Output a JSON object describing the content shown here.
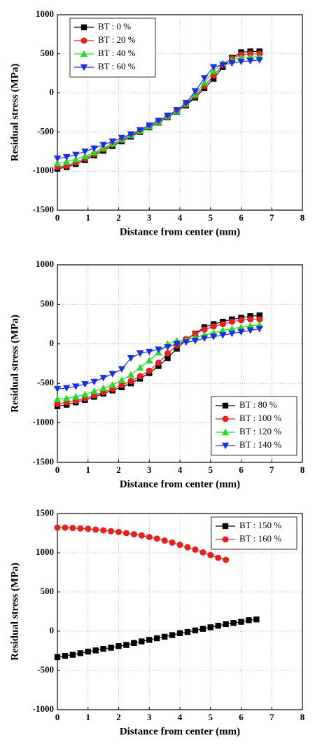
{
  "chart_data": [
    {
      "type": "line",
      "xlabel": "Distance from center (mm)",
      "ylabel": "Residual stress (MPa)",
      "xlim": [
        0,
        8
      ],
      "xticks": [
        0,
        1,
        2,
        3,
        4,
        5,
        6,
        7,
        8
      ],
      "ylim": [
        -1500,
        1000
      ],
      "yticks": [
        -1500,
        -1000,
        -500,
        0,
        500,
        1000
      ],
      "grid": true,
      "legend": "upper left",
      "series": [
        {
          "name": "BT : 0 %",
          "color": "#000000",
          "marker": "square",
          "x": [
            0,
            0.3,
            0.6,
            0.9,
            1.2,
            1.5,
            1.8,
            2.1,
            2.4,
            2.7,
            3.0,
            3.3,
            3.6,
            3.9,
            4.2,
            4.5,
            4.8,
            5.1,
            5.4,
            5.7,
            6.0,
            6.3,
            6.6
          ],
          "values": [
            -970,
            -950,
            -910,
            -860,
            -800,
            -740,
            -680,
            -620,
            -560,
            -500,
            -440,
            -380,
            -310,
            -240,
            -160,
            -60,
            60,
            180,
            330,
            450,
            520,
            530,
            530
          ]
        },
        {
          "name": "BT : 20 %",
          "color": "#e8201c",
          "marker": "circle",
          "x": [
            0,
            0.3,
            0.6,
            0.9,
            1.2,
            1.5,
            1.8,
            2.1,
            2.4,
            2.7,
            3.0,
            3.3,
            3.6,
            3.9,
            4.2,
            4.5,
            4.8,
            5.1,
            5.4,
            5.7,
            6.0,
            6.3,
            6.6
          ],
          "values": [
            -950,
            -930,
            -890,
            -840,
            -780,
            -720,
            -660,
            -600,
            -545,
            -490,
            -430,
            -370,
            -305,
            -235,
            -150,
            -40,
            90,
            220,
            360,
            440,
            490,
            500,
            500
          ]
        },
        {
          "name": "BT : 40 %",
          "color": "#22dd22",
          "marker": "triangle-up",
          "x": [
            0,
            0.3,
            0.6,
            0.9,
            1.2,
            1.5,
            1.8,
            2.1,
            2.4,
            2.7,
            3.0,
            3.3,
            3.6,
            3.9,
            4.2,
            4.5,
            4.8,
            5.1,
            5.4,
            5.7,
            6.0,
            6.3,
            6.6
          ],
          "values": [
            -900,
            -880,
            -850,
            -810,
            -760,
            -705,
            -650,
            -595,
            -540,
            -485,
            -430,
            -370,
            -300,
            -230,
            -140,
            -20,
            130,
            280,
            380,
            420,
            450,
            460,
            460
          ]
        },
        {
          "name": "BT : 60 %",
          "color": "#1a2ee8",
          "marker": "triangle-down",
          "x": [
            0,
            0.3,
            0.6,
            0.9,
            1.2,
            1.5,
            1.8,
            2.1,
            2.4,
            2.7,
            3.0,
            3.3,
            3.6,
            3.9,
            4.2,
            4.5,
            4.8,
            5.1,
            5.4,
            5.7,
            6.0,
            6.3,
            6.6
          ],
          "values": [
            -840,
            -820,
            -790,
            -750,
            -710,
            -665,
            -620,
            -575,
            -530,
            -475,
            -415,
            -355,
            -290,
            -220,
            -130,
            20,
            190,
            330,
            360,
            380,
            400,
            410,
            420
          ]
        }
      ]
    },
    {
      "type": "line",
      "xlabel": "Distance from center (mm)",
      "ylabel": "Residual stress (MPa)",
      "xlim": [
        0,
        8
      ],
      "xticks": [
        0,
        1,
        2,
        3,
        4,
        5,
        6,
        7,
        8
      ],
      "ylim": [
        -1500,
        1000
      ],
      "yticks": [
        -1500,
        -1000,
        -500,
        0,
        500,
        1000
      ],
      "grid": true,
      "legend": "lower right",
      "series": [
        {
          "name": "BT : 80 %",
          "color": "#000000",
          "marker": "square",
          "x": [
            0,
            0.3,
            0.6,
            0.9,
            1.2,
            1.5,
            1.8,
            2.1,
            2.4,
            2.7,
            3.0,
            3.3,
            3.6,
            3.9,
            4.2,
            4.5,
            4.8,
            5.1,
            5.4,
            5.7,
            6.0,
            6.3,
            6.6
          ],
          "values": [
            -790,
            -770,
            -740,
            -710,
            -670,
            -630,
            -590,
            -550,
            -500,
            -440,
            -370,
            -280,
            -180,
            -60,
            50,
            130,
            210,
            250,
            280,
            310,
            330,
            350,
            360
          ]
        },
        {
          "name": "BT : 100 %",
          "color": "#e8201c",
          "marker": "circle",
          "x": [
            0,
            0.3,
            0.6,
            0.9,
            1.2,
            1.5,
            1.8,
            2.1,
            2.4,
            2.7,
            3.0,
            3.3,
            3.6,
            3.9,
            4.2,
            4.5,
            4.8,
            5.1,
            5.4,
            5.7,
            6.0,
            6.3,
            6.6
          ],
          "values": [
            -760,
            -740,
            -720,
            -690,
            -650,
            -610,
            -570,
            -520,
            -470,
            -410,
            -340,
            -240,
            -120,
            -20,
            60,
            130,
            180,
            220,
            250,
            280,
            300,
            310,
            310
          ]
        },
        {
          "name": "BT : 120 %",
          "color": "#22dd22",
          "marker": "triangle-up",
          "x": [
            0,
            0.3,
            0.6,
            0.9,
            1.2,
            1.5,
            1.8,
            2.1,
            2.4,
            2.7,
            3.0,
            3.3,
            3.6,
            3.9,
            4.2,
            4.5,
            4.8,
            5.1,
            5.4,
            5.7,
            6.0,
            6.3,
            6.6
          ],
          "values": [
            -700,
            -690,
            -670,
            -640,
            -600,
            -560,
            -520,
            -460,
            -390,
            -300,
            -210,
            -110,
            0,
            40,
            50,
            80,
            110,
            140,
            170,
            190,
            210,
            230,
            240
          ]
        },
        {
          "name": "BT : 140 %",
          "color": "#1a2ee8",
          "marker": "triangle-down",
          "x": [
            0,
            0.3,
            0.6,
            0.9,
            1.2,
            1.5,
            1.8,
            2.1,
            2.4,
            2.7,
            3.0,
            3.3,
            3.6,
            3.9,
            4.2,
            4.5,
            4.8,
            5.1,
            5.4,
            5.7,
            6.0,
            6.3,
            6.6
          ],
          "values": [
            -570,
            -560,
            -540,
            -510,
            -480,
            -430,
            -380,
            -320,
            -180,
            -120,
            -100,
            -70,
            -40,
            0,
            20,
            40,
            70,
            90,
            110,
            130,
            150,
            170,
            190
          ]
        }
      ]
    },
    {
      "type": "line",
      "xlabel": "Distance from center (mm)",
      "ylabel": "Residual stress (MPa)",
      "xlim": [
        0,
        8
      ],
      "xticks": [
        0,
        1,
        2,
        3,
        4,
        5,
        6,
        7,
        8
      ],
      "ylim": [
        -1000,
        1500
      ],
      "yticks": [
        -1000,
        -500,
        0,
        500,
        1000,
        1500
      ],
      "grid": true,
      "legend": "upper right",
      "series": [
        {
          "name": "BT : 150 %",
          "color": "#000000",
          "marker": "square",
          "x": [
            0,
            0.25,
            0.5,
            0.75,
            1,
            1.25,
            1.5,
            1.75,
            2,
            2.25,
            2.5,
            2.75,
            3,
            3.25,
            3.5,
            3.75,
            4,
            4.25,
            4.5,
            4.75,
            5,
            5.25,
            5.5,
            5.75,
            6,
            6.25,
            6.5
          ],
          "values": [
            -330,
            -315,
            -300,
            -280,
            -260,
            -245,
            -225,
            -210,
            -190,
            -175,
            -150,
            -130,
            -110,
            -90,
            -70,
            -50,
            -25,
            -10,
            10,
            30,
            50,
            70,
            90,
            105,
            120,
            140,
            150
          ]
        },
        {
          "name": "BT : 160 %",
          "color": "#e8201c",
          "marker": "circle",
          "x": [
            0,
            0.25,
            0.5,
            0.75,
            1,
            1.25,
            1.5,
            1.75,
            2,
            2.25,
            2.5,
            2.75,
            3,
            3.25,
            3.5,
            3.75,
            4,
            4.25,
            4.5,
            4.75,
            5,
            5.25,
            5.5
          ],
          "values": [
            1320,
            1320,
            1315,
            1310,
            1305,
            1295,
            1285,
            1275,
            1265,
            1250,
            1235,
            1220,
            1200,
            1180,
            1155,
            1130,
            1100,
            1070,
            1040,
            1005,
            970,
            935,
            910
          ]
        }
      ]
    }
  ]
}
